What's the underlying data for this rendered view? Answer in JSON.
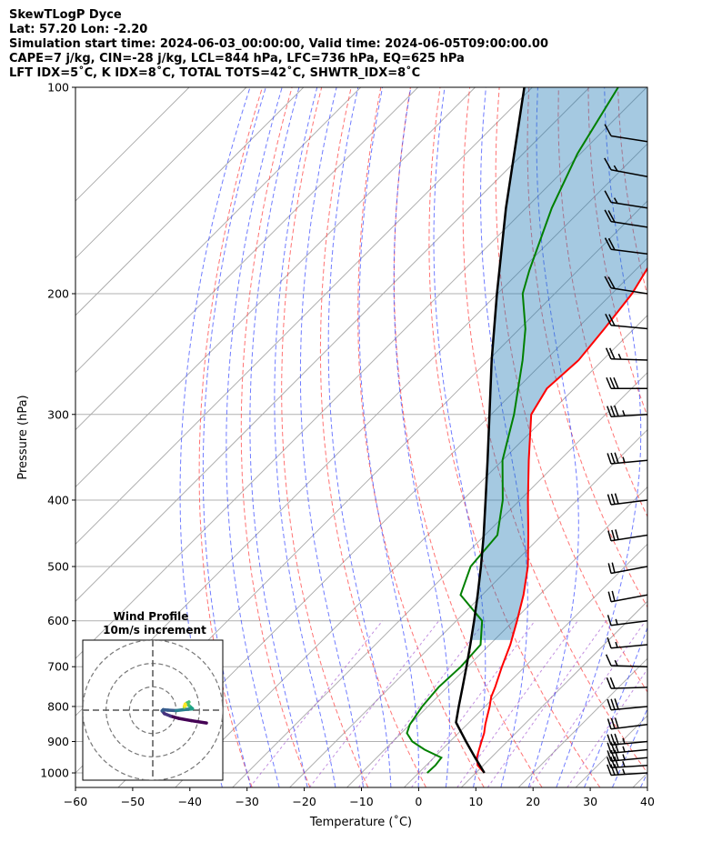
{
  "header": {
    "line1": "SkewTLogP Dyce",
    "line2": "Lat: 57.20   Lon: -2.20",
    "line3": "Simulation start time: 2024-06-03_00:00:00, Valid time: 2024-06-05T09:00:00.00",
    "line4": "CAPE=7 j/kg, CIN=-28 j/kg, LCL=844 hPa, LFC=736 hPa, EQ=625 hPa",
    "line5": "LFT IDX=5˚C, K IDX=8˚C, TOTAL TOTS=42˚C, SHWTR_IDX=8˚C"
  },
  "chart_data": {
    "type": "skewt-logp",
    "xlabel": "Temperature (˚C)",
    "ylabel": "Pressure (hPa)",
    "xlim": [
      -60,
      40
    ],
    "ylim": [
      1050,
      100
    ],
    "x_ticks": [
      "−60",
      "−50",
      "−40",
      "−30",
      "−20",
      "−10",
      "0",
      "10",
      "20",
      "30",
      "40"
    ],
    "y_ticks": [
      100,
      200,
      300,
      400,
      500,
      600,
      700,
      800,
      900,
      1000
    ],
    "y_scale": "log",
    "grid": true,
    "colors": {
      "temperature": "#ff0000",
      "dewpoint": "#008000",
      "parcel": "#000000",
      "cape_shading": "#1f77b4",
      "dry_adiabats": "#ff4444",
      "moist_adiabats": "#3344ff",
      "mixing_ratio": "#9944cc",
      "isotherms": "#999999"
    },
    "temperature_profile": [
      {
        "p": 1000,
        "t": 11.5
      },
      {
        "p": 975,
        "t": 9.0
      },
      {
        "p": 950,
        "t": 7.5
      },
      {
        "p": 925,
        "t": 6.5
      },
      {
        "p": 900,
        "t": 5.5
      },
      {
        "p": 875,
        "t": 4.5
      },
      {
        "p": 850,
        "t": 3.2
      },
      {
        "p": 825,
        "t": 2.0
      },
      {
        "p": 800,
        "t": 0.8
      },
      {
        "p": 775,
        "t": -0.6
      },
      {
        "p": 750,
        "t": -1.6
      },
      {
        "p": 700,
        "t": -4.0
      },
      {
        "p": 650,
        "t": -6.4
      },
      {
        "p": 600,
        "t": -9.4
      },
      {
        "p": 550,
        "t": -12.8
      },
      {
        "p": 500,
        "t": -17.0
      },
      {
        "p": 450,
        "t": -22.4
      },
      {
        "p": 400,
        "t": -28.6
      },
      {
        "p": 350,
        "t": -35.4
      },
      {
        "p": 300,
        "t": -43.0
      },
      {
        "p": 275,
        "t": -44.8
      },
      {
        "p": 250,
        "t": -44.2
      },
      {
        "p": 225,
        "t": -45.2
      },
      {
        "p": 200,
        "t": -46.5
      },
      {
        "p": 175,
        "t": -49.2
      },
      {
        "p": 150,
        "t": -51.6
      },
      {
        "p": 125,
        "t": -54.6
      },
      {
        "p": 100,
        "t": -58.0
      }
    ],
    "dewpoint_profile": [
      {
        "p": 1000,
        "t": 1.5
      },
      {
        "p": 975,
        "t": 1.6
      },
      {
        "p": 950,
        "t": 1.3
      },
      {
        "p": 925,
        "t": -3.0
      },
      {
        "p": 900,
        "t": -6.6
      },
      {
        "p": 875,
        "t": -9.0
      },
      {
        "p": 850,
        "t": -10.0
      },
      {
        "p": 800,
        "t": -11.0
      },
      {
        "p": 750,
        "t": -11.5
      },
      {
        "p": 700,
        "t": -11.2
      },
      {
        "p": 650,
        "t": -11.6
      },
      {
        "p": 600,
        "t": -15.5
      },
      {
        "p": 550,
        "t": -23.8
      },
      {
        "p": 500,
        "t": -27.0
      },
      {
        "p": 450,
        "t": -27.8
      },
      {
        "p": 400,
        "t": -33.0
      },
      {
        "p": 350,
        "t": -40.0
      },
      {
        "p": 300,
        "t": -46.0
      },
      {
        "p": 250,
        "t": -54.0
      },
      {
        "p": 225,
        "t": -59.0
      },
      {
        "p": 200,
        "t": -65.6
      },
      {
        "p": 185,
        "t": -68.5
      },
      {
        "p": 150,
        "t": -75.5
      },
      {
        "p": 125,
        "t": -80.5
      },
      {
        "p": 100,
        "t": -85.0
      }
    ],
    "parcel_profile": [
      {
        "p": 1000,
        "t": 11.5
      },
      {
        "p": 950,
        "t": 7.2
      },
      {
        "p": 900,
        "t": 2.8
      },
      {
        "p": 844,
        "t": -2.3
      },
      {
        "p": 800,
        "t": -4.6
      },
      {
        "p": 750,
        "t": -7.3
      },
      {
        "p": 700,
        "t": -10.2
      },
      {
        "p": 650,
        "t": -13.4
      },
      {
        "p": 600,
        "t": -16.9
      },
      {
        "p": 550,
        "t": -20.8
      },
      {
        "p": 500,
        "t": -25.2
      },
      {
        "p": 450,
        "t": -30.2
      },
      {
        "p": 400,
        "t": -36.0
      },
      {
        "p": 350,
        "t": -42.6
      },
      {
        "p": 300,
        "t": -50.3
      },
      {
        "p": 250,
        "t": -59.4
      },
      {
        "p": 200,
        "t": -70.1
      },
      {
        "p": 150,
        "t": -83.5
      },
      {
        "p": 100,
        "t": -101.4
      }
    ],
    "wind_barbs": [
      {
        "p": 1000,
        "speed_kt": 35,
        "dir_deg": 280
      },
      {
        "p": 975,
        "speed_kt": 35,
        "dir_deg": 280
      },
      {
        "p": 950,
        "speed_kt": 35,
        "dir_deg": 285
      },
      {
        "p": 925,
        "speed_kt": 35,
        "dir_deg": 285
      },
      {
        "p": 900,
        "speed_kt": 35,
        "dir_deg": 285
      },
      {
        "p": 850,
        "speed_kt": 30,
        "dir_deg": 290
      },
      {
        "p": 800,
        "speed_kt": 30,
        "dir_deg": 285
      },
      {
        "p": 750,
        "speed_kt": 20,
        "dir_deg": 275
      },
      {
        "p": 700,
        "speed_kt": 15,
        "dir_deg": 265
      },
      {
        "p": 650,
        "speed_kt": 15,
        "dir_deg": 285
      },
      {
        "p": 600,
        "speed_kt": 15,
        "dir_deg": 290
      },
      {
        "p": 550,
        "speed_kt": 20,
        "dir_deg": 300
      },
      {
        "p": 500,
        "speed_kt": 20,
        "dir_deg": 300
      },
      {
        "p": 450,
        "speed_kt": 30,
        "dir_deg": 295
      },
      {
        "p": 400,
        "speed_kt": 30,
        "dir_deg": 290
      },
      {
        "p": 350,
        "speed_kt": 35,
        "dir_deg": 285
      },
      {
        "p": 300,
        "speed_kt": 35,
        "dir_deg": 280
      },
      {
        "p": 275,
        "speed_kt": 30,
        "dir_deg": 270
      },
      {
        "p": 250,
        "speed_kt": 25,
        "dir_deg": 265
      },
      {
        "p": 225,
        "speed_kt": 20,
        "dir_deg": 255
      },
      {
        "p": 200,
        "speed_kt": 20,
        "dir_deg": 245
      },
      {
        "p": 175,
        "speed_kt": 20,
        "dir_deg": 250
      },
      {
        "p": 160,
        "speed_kt": 20,
        "dir_deg": 245
      },
      {
        "p": 150,
        "speed_kt": 15,
        "dir_deg": 245
      },
      {
        "p": 135,
        "speed_kt": 15,
        "dir_deg": 240
      },
      {
        "p": 120,
        "speed_kt": 10,
        "dir_deg": 245
      }
    ],
    "hodograph": {
      "title": "Wind Profile",
      "subtitle": "10m/s increment",
      "ring_increment_ms": 10,
      "range_ms": 30,
      "points": [
        {
          "u": 23.0,
          "v": -5.5
        },
        {
          "u": 16.5,
          "v": -4.5
        },
        {
          "u": 11.0,
          "v": -3.5
        },
        {
          "u": 7.5,
          "v": -2.5
        },
        {
          "u": 5.0,
          "v": -1.5
        },
        {
          "u": 4.0,
          "v": -0.3
        },
        {
          "u": 4.5,
          "v": 0.2
        },
        {
          "u": 6.5,
          "v": 0.0
        },
        {
          "u": 10.0,
          "v": -0.2
        },
        {
          "u": 14.0,
          "v": 0.3
        },
        {
          "u": 16.5,
          "v": 0.5
        },
        {
          "u": 17.0,
          "v": 0.6
        },
        {
          "u": 15.5,
          "v": 2.0
        },
        {
          "u": 14.5,
          "v": 3.0
        },
        {
          "u": 15.5,
          "v": 3.5
        },
        {
          "u": 14.0,
          "v": 2.2
        },
        {
          "u": 13.5,
          "v": 1.3
        },
        {
          "u": 13.6,
          "v": 1.8
        },
        {
          "u": 13.9,
          "v": 2.6
        },
        {
          "u": 14.1,
          "v": 2.0
        }
      ]
    }
  }
}
